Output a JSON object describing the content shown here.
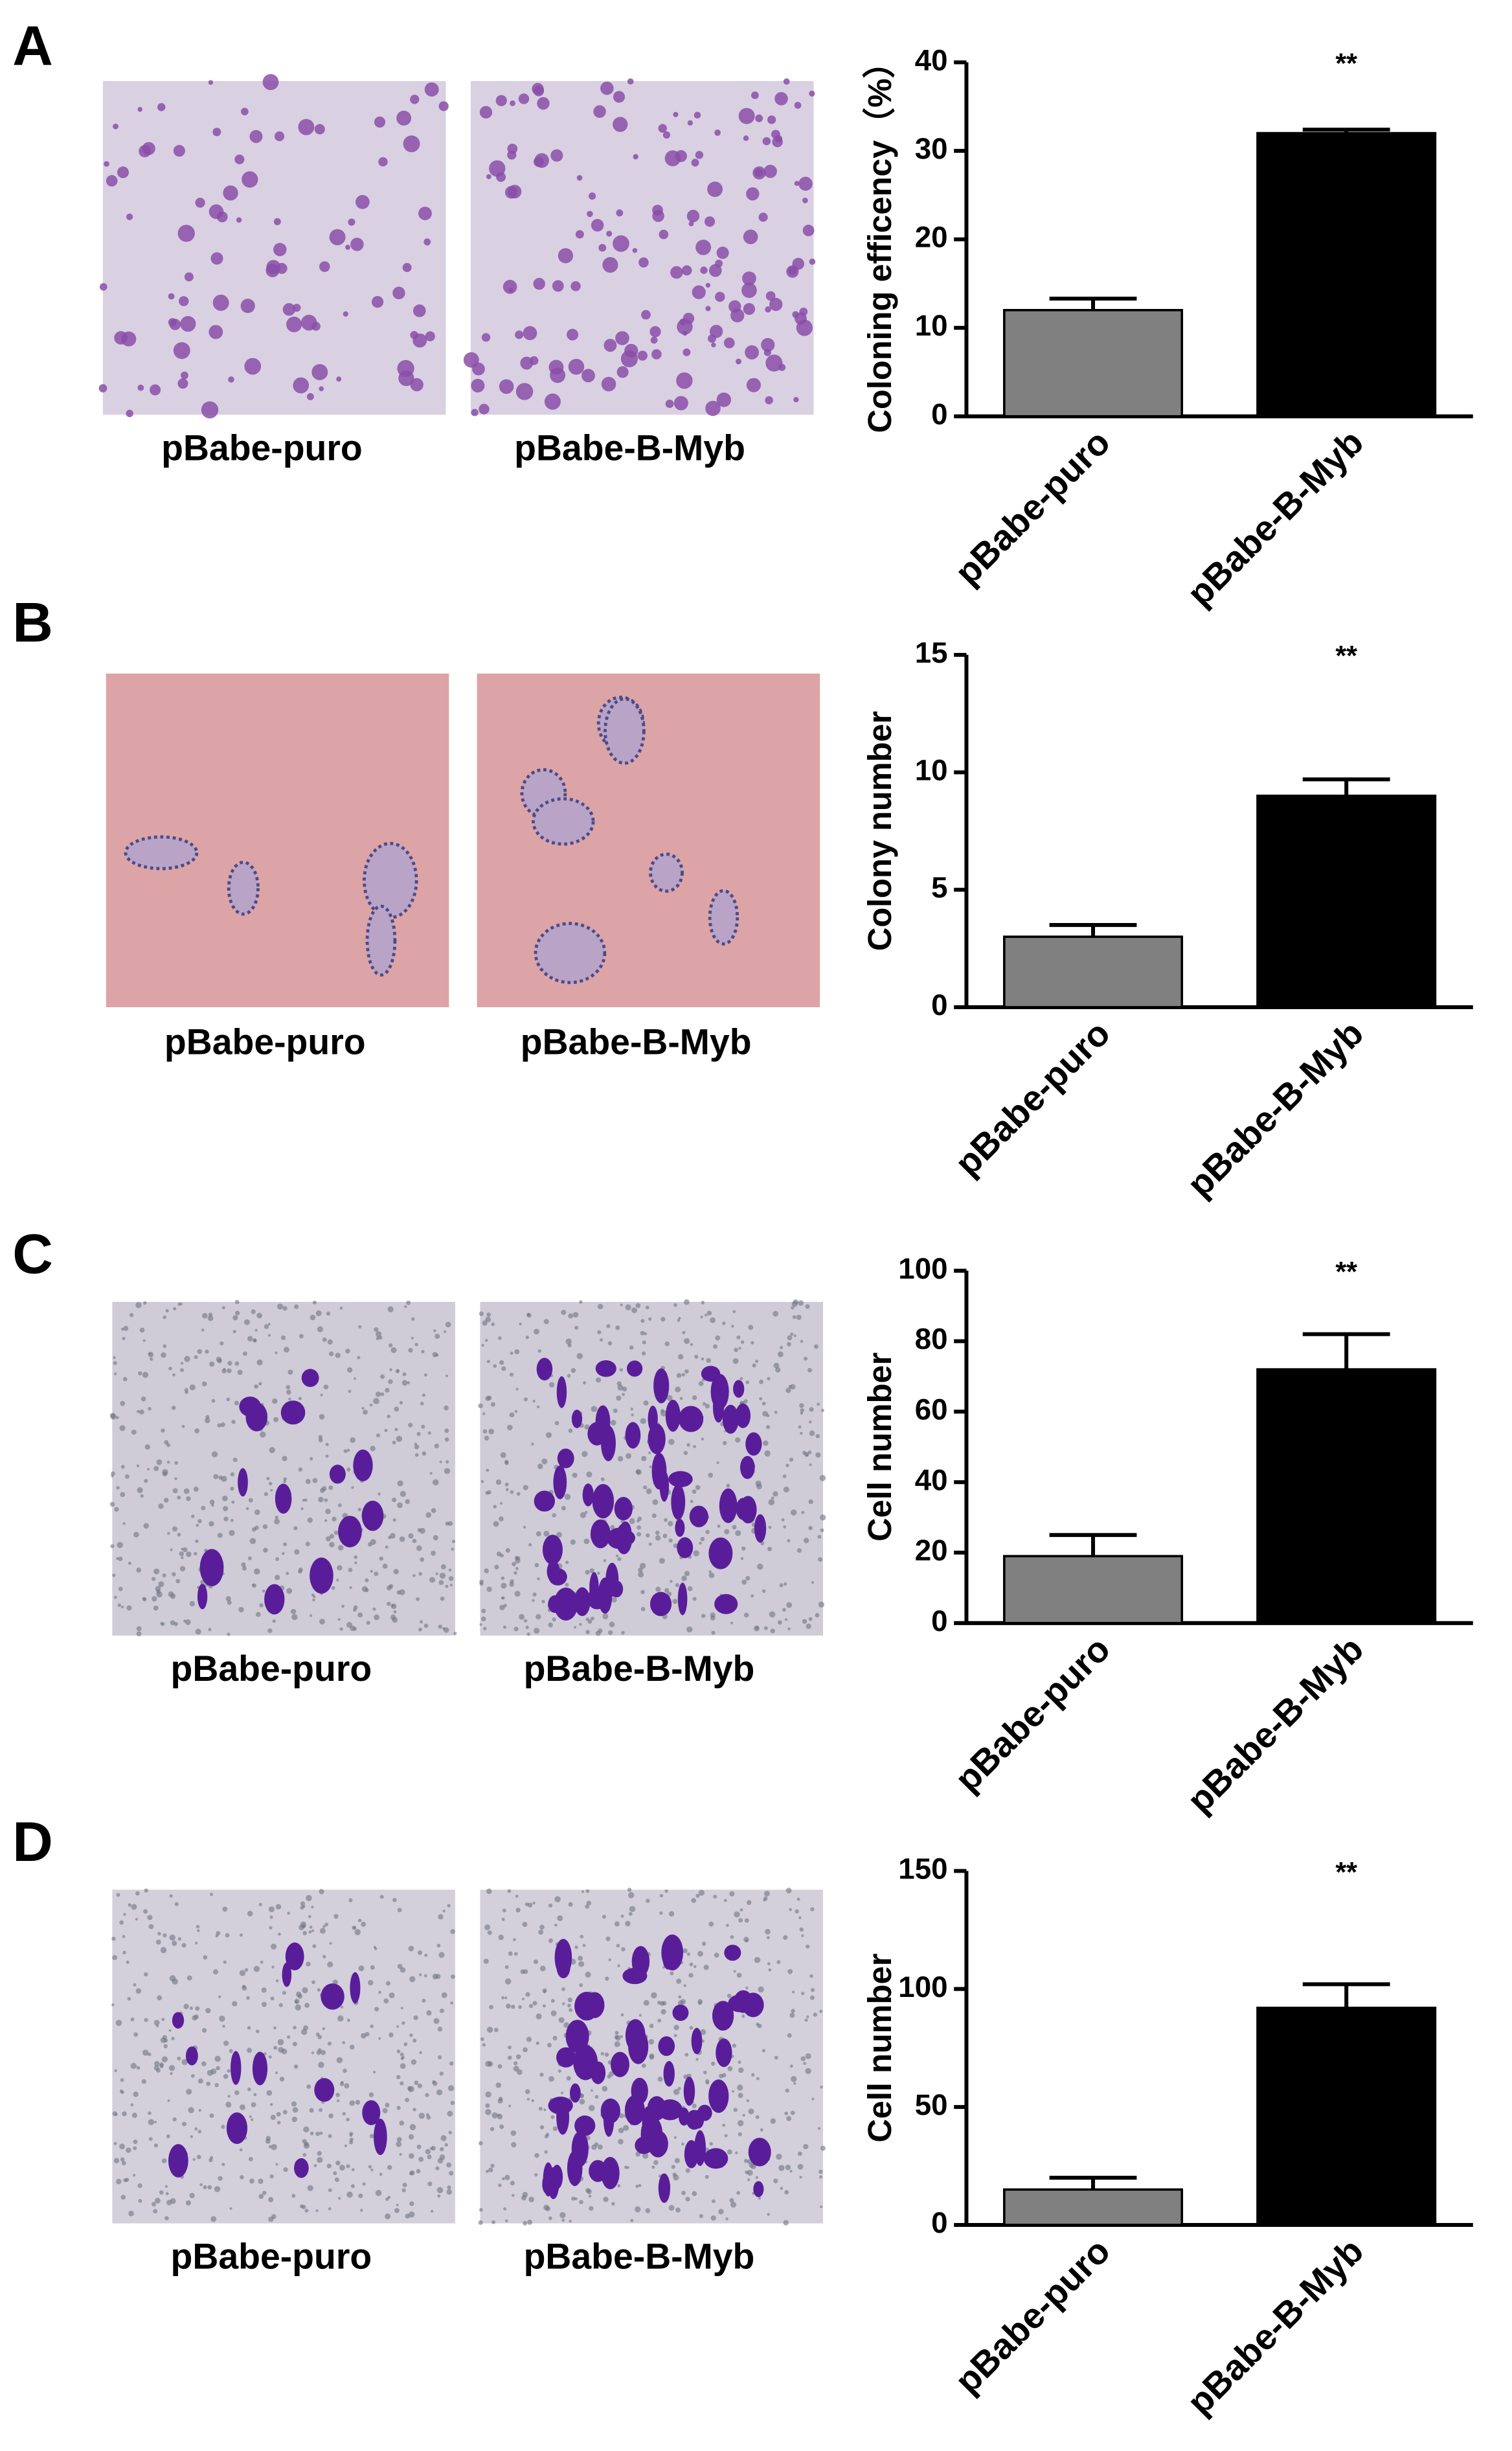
{
  "chart_data": [
    {
      "type": "bar",
      "panel": "A",
      "image_captions": [
        "pBabe-puro",
        "pBabe-B-Myb"
      ],
      "ylabel": "Coloning efficency（%）",
      "categories": [
        "pBabe-puro",
        "pBabe-B-Myb"
      ],
      "values": [
        12,
        32
      ],
      "errors": [
        1.3,
        0.4
      ],
      "colors": [
        "#808080",
        "#000000"
      ],
      "annotations": [
        null,
        "**"
      ],
      "ylim": [
        0,
        40
      ],
      "yticks": [
        0,
        10,
        20,
        30,
        40
      ]
    },
    {
      "type": "bar",
      "panel": "B",
      "image_captions": [
        "pBabe-puro",
        "pBabe-B-Myb"
      ],
      "ylabel": "Colony number",
      "categories": [
        "pBabe-puro",
        "pBabe-B-Myb"
      ],
      "values": [
        3,
        9
      ],
      "errors": [
        0.5,
        0.7
      ],
      "colors": [
        "#808080",
        "#000000"
      ],
      "annotations": [
        null,
        "**"
      ],
      "ylim": [
        0,
        15
      ],
      "yticks": [
        0,
        5,
        10,
        15
      ]
    },
    {
      "type": "bar",
      "panel": "C",
      "image_captions": [
        "pBabe-puro",
        "pBabe-B-Myb"
      ],
      "ylabel": "Cell number",
      "categories": [
        "pBabe-puro",
        "pBabe-B-Myb"
      ],
      "values": [
        19,
        72
      ],
      "errors": [
        6,
        10
      ],
      "colors": [
        "#808080",
        "#000000"
      ],
      "annotations": [
        null,
        "**"
      ],
      "ylim": [
        0,
        100
      ],
      "yticks": [
        0,
        20,
        40,
        60,
        80,
        100
      ]
    },
    {
      "type": "bar",
      "panel": "D",
      "image_captions": [
        "pBabe-puro",
        "pBabe-B-Myb"
      ],
      "ylabel": "Cell number",
      "categories": [
        "pBabe-puro",
        "pBabe-B-Myb"
      ],
      "values": [
        15,
        92
      ],
      "errors": [
        5,
        10
      ],
      "colors": [
        "#808080",
        "#000000"
      ],
      "annotations": [
        null,
        "**"
      ],
      "ylim": [
        0,
        150
      ],
      "yticks": [
        0,
        50,
        100,
        150
      ]
    }
  ]
}
